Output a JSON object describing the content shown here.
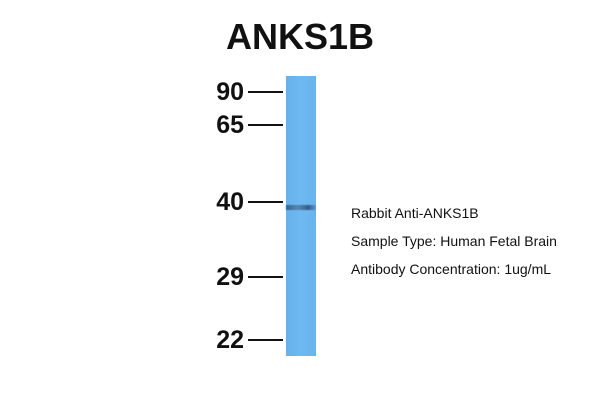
{
  "title": "ANKS1B",
  "markers": [
    "90",
    "65",
    "40",
    "29",
    "22"
  ],
  "lane_color": "#6bb6ef",
  "info": {
    "antibody": "Rabbit Anti-ANKS1B",
    "sample": "Sample Type: Human Fetal Brain",
    "concentration": "Antibody Concentration: 1ug/mL"
  }
}
